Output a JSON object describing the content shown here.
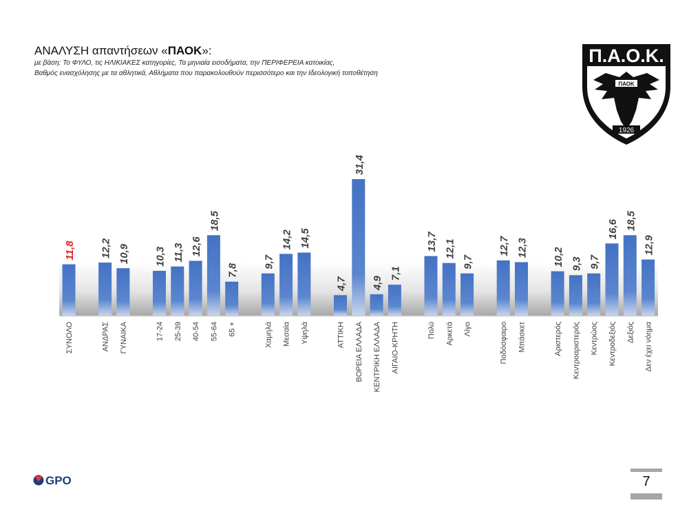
{
  "header": {
    "title_prefix": "ΑΝΑΛΥΣΗ απαντήσεων «",
    "title_bold": "ΠΑΟΚ",
    "title_suffix": "»:",
    "subtitle_line1": "με βάση: Το ΦΥΛΟ, τις ΗΛΙΚΙΑΚΕΣ κατηγορίες, Τα μηνιαία εισοδήματα, την ΠΕΡΙΦΕΡΕΙΑ κατοικίας,",
    "subtitle_line2": "Βαθμός ενασχόλησης με τα αθλητικά, Αθλήματα που παρακολουθούν περισσότερο και την Ιδεολογική τοποθέτηση"
  },
  "logo": {
    "text_top": "Π.Α.Ο.Κ.",
    "text_badge": "ΠΑΟΚ",
    "year": "1926"
  },
  "footer": {
    "brand": "GPO",
    "page_number": "7"
  },
  "colors": {
    "bar": "#4472c4",
    "highlight_label": "#e02020",
    "label": "#404040"
  },
  "chart_data": {
    "type": "bar",
    "title": "",
    "xlabel": "",
    "ylabel": "",
    "ylim": [
      0,
      32
    ],
    "grid": false,
    "groups": [
      {
        "categories": [
          "ΣΥΝΟΛΟ"
        ],
        "values": [
          11.8
        ]
      },
      {
        "categories": [
          "ΑΝΔΡΑΣ",
          "ΓΥΝΑΙΚΑ"
        ],
        "values": [
          12.2,
          10.9
        ]
      },
      {
        "categories": [
          "17-24",
          "25-39",
          "40-54",
          "55-64",
          "65 +"
        ],
        "values": [
          10.3,
          11.3,
          12.6,
          18.5,
          7.8
        ]
      },
      {
        "categories": [
          "Χαμηλά",
          "Μεσαία",
          "Υψηλά"
        ],
        "values": [
          9.7,
          14.2,
          14.5
        ]
      },
      {
        "categories": [
          "ΑΤΤΙΚΗ",
          "ΒΟΡΕΙΑ ΕΛΛΑΔΑ",
          "ΚΕΝΤΡΙΚΗ ΕΛΛΑΔΑ",
          "ΑΙΓΑΙΟ-ΚΡΗΤΗ"
        ],
        "values": [
          4.7,
          31.4,
          4.9,
          7.1
        ]
      },
      {
        "categories": [
          "Πολύ",
          "Αρκετά",
          "Λίγο"
        ],
        "values": [
          13.7,
          12.1,
          9.7
        ]
      },
      {
        "categories": [
          "Ποδόσφαιρο",
          "Μπάσκετ"
        ],
        "values": [
          12.7,
          12.3
        ]
      },
      {
        "categories": [
          "Αριστερός",
          "Κεντροαριστερός",
          "Κεντρώος",
          "Κεντροδεξιός",
          "Δεξιός",
          "Δεν έχει νόημα"
        ],
        "values": [
          10.2,
          9.3,
          9.7,
          16.6,
          18.5,
          12.9
        ]
      }
    ],
    "value_labels": [
      [
        "11,8"
      ],
      [
        "12,2",
        "10,9"
      ],
      [
        "10,3",
        "11,3",
        "12,6",
        "18,5",
        "7,8"
      ],
      [
        "9,7",
        "14,2",
        "14,5"
      ],
      [
        "4,7",
        "31,4",
        "4,9",
        "7,1"
      ],
      [
        "13,7",
        "12,1",
        "9,7"
      ],
      [
        "12,7",
        "12,3"
      ],
      [
        "10,2",
        "9,3",
        "9,7",
        "16,6",
        "18,5",
        "12,9"
      ]
    ]
  }
}
